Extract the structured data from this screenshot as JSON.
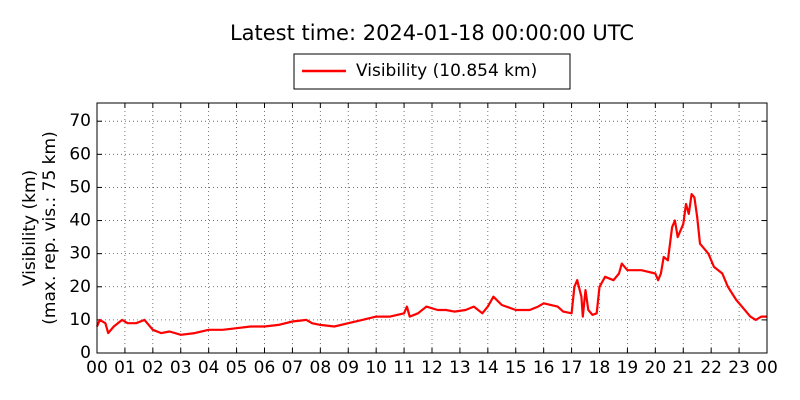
{
  "chart_data": {
    "type": "line",
    "title": "Latest time: 2024-01-18 00:00:00 UTC",
    "ylabel": [
      "Visibility (km)",
      "(max. rep. vis.: 75 km)"
    ],
    "x": [
      0,
      0.1,
      0.3,
      0.4,
      0.6,
      0.9,
      1.1,
      1.4,
      1.7,
      2.0,
      2.3,
      2.6,
      3.0,
      3.5,
      4.0,
      4.5,
      5.0,
      5.5,
      6.0,
      6.5,
      7.0,
      7.5,
      7.7,
      8.0,
      8.5,
      9.0,
      9.5,
      10.0,
      10.5,
      11.0,
      11.1,
      11.2,
      11.5,
      11.8,
      12.2,
      12.5,
      12.8,
      13.2,
      13.5,
      13.8,
      14.0,
      14.2,
      14.5,
      15.0,
      15.5,
      15.8,
      16.0,
      16.5,
      16.7,
      17.0,
      17.1,
      17.2,
      17.35,
      17.4,
      17.5,
      17.6,
      17.75,
      17.9,
      18.0,
      18.2,
      18.5,
      18.7,
      18.8,
      19.0,
      19.5,
      20.0,
      20.1,
      20.2,
      20.3,
      20.45,
      20.6,
      20.7,
      20.8,
      21.0,
      21.1,
      21.2,
      21.3,
      21.4,
      21.5,
      21.6,
      21.9,
      22.1,
      22.4,
      22.6,
      22.9,
      23.1,
      23.4,
      23.6,
      23.8,
      24.0
    ],
    "series": [
      {
        "name": "Visibility (10.854 km)",
        "color": "#ff0000",
        "values": [
          8,
          10,
          9,
          6,
          8,
          10,
          9,
          9,
          10,
          7,
          6,
          6.5,
          5.5,
          6,
          7,
          7,
          7.5,
          8,
          8,
          8.5,
          9.5,
          10,
          9,
          8.5,
          8,
          9,
          10,
          11,
          11,
          12,
          14,
          11,
          12,
          14,
          13,
          13,
          12.5,
          13,
          14,
          12,
          14,
          17,
          14.5,
          13,
          13,
          14,
          15,
          14,
          12.5,
          12,
          20,
          22,
          17,
          11,
          19,
          13,
          11.5,
          12,
          20,
          23,
          22,
          24,
          27,
          25,
          25,
          24,
          22,
          24,
          29,
          28,
          38,
          40,
          35,
          39,
          45,
          42,
          48,
          47,
          41,
          33,
          30,
          26,
          24,
          20,
          16,
          14,
          11,
          10,
          11,
          11
        ]
      }
    ],
    "xlim": [
      0,
      24
    ],
    "xticks": [
      {
        "value": 0,
        "label": "00"
      },
      {
        "value": 1,
        "label": "01"
      },
      {
        "value": 2,
        "label": "02"
      },
      {
        "value": 3,
        "label": "03"
      },
      {
        "value": 4,
        "label": "04"
      },
      {
        "value": 5,
        "label": "05"
      },
      {
        "value": 6,
        "label": "06"
      },
      {
        "value": 7,
        "label": "07"
      },
      {
        "value": 8,
        "label": "08"
      },
      {
        "value": 9,
        "label": "09"
      },
      {
        "value": 10,
        "label": "10"
      },
      {
        "value": 11,
        "label": "11"
      },
      {
        "value": 12,
        "label": "12"
      },
      {
        "value": 13,
        "label": "13"
      },
      {
        "value": 14,
        "label": "14"
      },
      {
        "value": 15,
        "label": "15"
      },
      {
        "value": 16,
        "label": "16"
      },
      {
        "value": 17,
        "label": "17"
      },
      {
        "value": 18,
        "label": "18"
      },
      {
        "value": 19,
        "label": "19"
      },
      {
        "value": 20,
        "label": "20"
      },
      {
        "value": 21,
        "label": "21"
      },
      {
        "value": 22,
        "label": "22"
      },
      {
        "value": 23,
        "label": "23"
      },
      {
        "value": 24,
        "label": "00"
      }
    ],
    "ylim": [
      0,
      75.5
    ],
    "yticks": [
      0,
      10,
      20,
      30,
      40,
      50,
      60,
      70
    ],
    "grid": true
  }
}
